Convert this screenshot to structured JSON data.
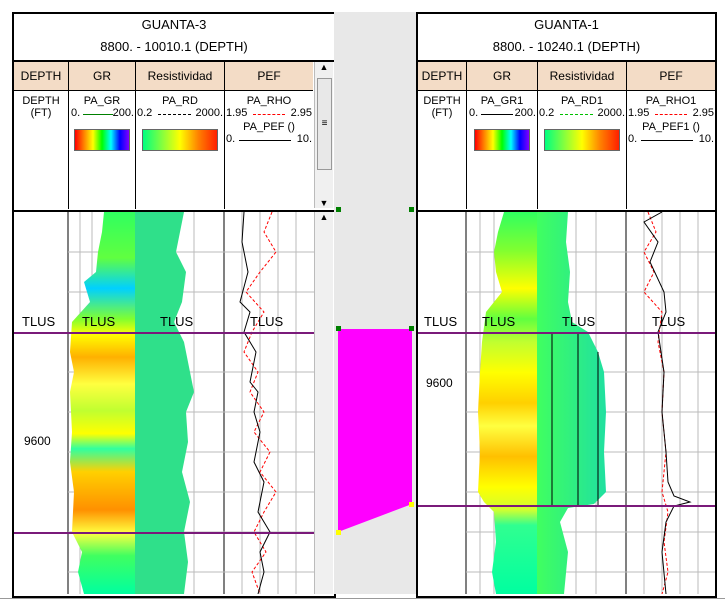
{
  "left": {
    "title": "GUANTA-3",
    "range": "8800. - 10010.1 (DEPTH)",
    "tracks": [
      "DEPTH",
      "GR",
      "Resistividad",
      "PEF"
    ],
    "depth_unit": "DEPTH\n(FT)",
    "gr_curve": "PA_GR",
    "gr_scale_min": "0.",
    "gr_scale_max": "200.",
    "rd_curve": "PA_RD",
    "rd_scale_min": "0.2",
    "rd_scale_max": "2000.",
    "rho_curve": "PA_RHO",
    "rho_scale_min": "1.95",
    "rho_scale_max": "2.95",
    "pef_curve": "PA_PEF ()",
    "pef_scale_min": "0.",
    "pef_scale_max": "10.",
    "marker": "TLUS",
    "depth_label": "9600"
  },
  "right": {
    "title": "GUANTA-1",
    "range": "8800. - 10240.1 (DEPTH)",
    "tracks": [
      "DEPTH",
      "GR",
      "Resistividad",
      "PEF"
    ],
    "depth_unit": "DEPTH\n(FT)",
    "gr_curve": "PA_GR1",
    "gr_scale_min": "0.",
    "gr_scale_max": "200.",
    "rd_curve": "PA_RD1",
    "rd_scale_min": "0.2",
    "rd_scale_max": "2000.",
    "rho_curve": "PA_RHO1",
    "rho_scale_min": "1.95",
    "rho_scale_max": "2.95",
    "pef_curve": "PA_PEF1 ()",
    "pef_scale_min": "0.",
    "pef_scale_max": "10.",
    "marker": "TLUS",
    "depth_label": "9600"
  },
  "colors": {
    "header_bg": "#f3dcc6",
    "marker_line": "#7a1a7a",
    "correlation_fill": "#ff00ff",
    "res_fill": "#2fe08a"
  }
}
